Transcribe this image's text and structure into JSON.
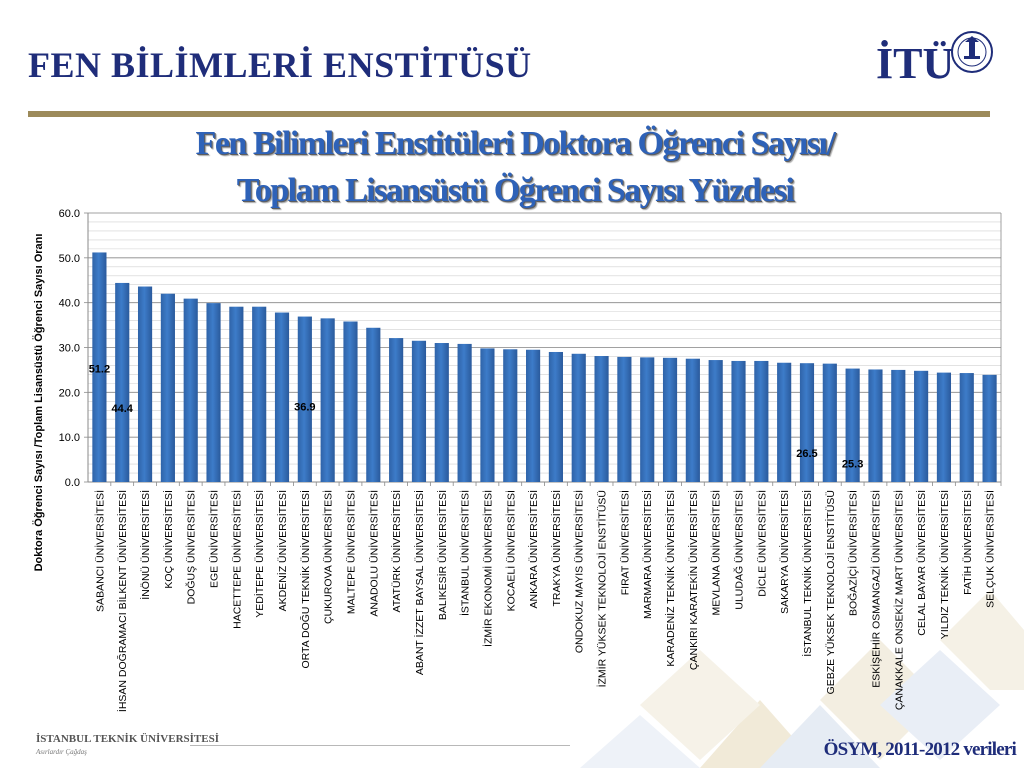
{
  "header": {
    "title": "FEN BİLİMLERİ ENSTİTÜSÜ"
  },
  "logo": {
    "text": "İTÜ",
    "seal_name": "itu-seal"
  },
  "chart_data": {
    "type": "bar",
    "title_lines": [
      "Fen Bilimleri Enstitüleri Doktora Öğrenci Sayısı/",
      "Toplam Lisansüstü Öğrenci Sayısı Yüzdesi"
    ],
    "ylabel": "Doktora Öğrenci Sayısı /Toplam Lisansüstü Öğrenci Sayısı Oranı",
    "xlabel": "",
    "ylim": [
      0,
      60
    ],
    "yticks": [
      "0.0",
      "10.0",
      "20.0",
      "30.0",
      "40.0",
      "50.0",
      "60.0"
    ],
    "minor_grid_step": 2,
    "grid": true,
    "bar_color": "#3d7cc9",
    "categories": [
      "SABANCI ÜNİVERSİTESİ",
      "İHSAN DOĞRAMACI BİLKENT ÜNİVERSİTESİ",
      "İNÖNÜ ÜNİVERSİTESİ",
      "KOÇ ÜNİVERSİTESİ",
      "DOĞUŞ ÜNİVERSİTESİ",
      "EGE ÜNİVERSİTESİ",
      "HACETTEPE ÜNİVERSİTESİ",
      "YEDİTEPE ÜNİVERSİTESİ",
      "AKDENİZ ÜNİVERSİTESİ",
      "ORTA DOĞU TEKNİK ÜNİVERSİTESİ",
      "ÇUKUROVA ÜNİVERSİTESİ",
      "MALTEPE ÜNİVERSİTESİ",
      "ANADOLU ÜNİVERSİTESİ",
      "ATATÜRK ÜNİVERSİTESİ",
      "ABANT İZZET BAYSAL ÜNİVERSİTESİ",
      "BALIKESİR ÜNİVERSİTESİ",
      "İSTANBUL ÜNİVERSİTESİ",
      "İZMİR EKONOMİ ÜNİVERSİTESİ",
      "KOCAELİ ÜNİVERSİTESİ",
      "ANKARA ÜNİVERSİTESİ",
      "TRAKYA ÜNİVERSİTESİ",
      "ONDOKUZ MAYIS ÜNİVERSİTESİ",
      "İZMİR YÜKSEK TEKNOLOJİ ENSTİTÜSÜ",
      "FIRAT ÜNİVERSİTESİ",
      "MARMARA ÜNİVERSİTESİ",
      "KARADENİZ TEKNİK ÜNİVERSİTESİ",
      "ÇANKIRI KARATEKİN ÜNİVERSİTESİ",
      "MEVLANA ÜNİVERSİTESİ",
      "ULUDAĞ ÜNİVERSİTESİ",
      "DİCLE ÜNİVERSİTESİ",
      "SAKARYA ÜNİVERSİTESİ",
      "İSTANBUL TEKNİK ÜNİVERSİTESİ",
      "GEBZE YÜKSEK TEKNOLOJİ ENSTİTÜSÜ",
      "BOĞAZİÇİ ÜNİVERSİTESİ",
      "ESKİŞEHİR OSMANGAZİ ÜNİVERSİTESİ",
      "ÇANAKKALE ONSEKİZ MART ÜNİVERSİTESİ",
      "CELAL BAYAR ÜNİVERSİTESİ",
      "YILDIZ TEKNİK ÜNİVERSİTESİ",
      "FATİH ÜNİVERSİTESİ",
      "SELÇUK ÜNİVERSİTESİ"
    ],
    "values": [
      51.2,
      44.4,
      43.6,
      42.0,
      40.9,
      39.9,
      39.1,
      39.1,
      37.8,
      36.9,
      36.5,
      35.8,
      34.4,
      32.1,
      31.5,
      31.0,
      30.8,
      29.8,
      29.6,
      29.5,
      29.0,
      28.6,
      28.1,
      27.9,
      27.8,
      27.7,
      27.5,
      27.2,
      27.0,
      27.0,
      26.6,
      26.5,
      26.4,
      25.3,
      25.1,
      25.0,
      24.8,
      24.4,
      24.3,
      23.9
    ],
    "data_labels": [
      {
        "index": 0,
        "text": "51.2"
      },
      {
        "index": 1,
        "text": "44.4"
      },
      {
        "index": 9,
        "text": "36.9"
      },
      {
        "index": 31,
        "text": "26.5"
      },
      {
        "index": 33,
        "text": "25.3"
      }
    ]
  },
  "footer": {
    "university": "İSTANBUL TEKNİK ÜNİVERSİTESİ",
    "motto": "Asırlardır Çağdaş",
    "source": "ÖSYM, 2011-2012 verileri"
  }
}
